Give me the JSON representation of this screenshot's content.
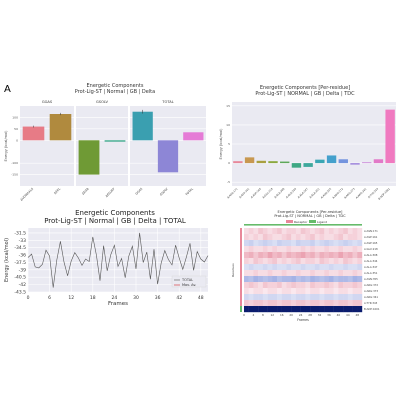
{
  "panel_letter": "A",
  "chart_data": [
    {
      "type": "bar",
      "title": "Energetic Components",
      "subtitle": "Prot-Lig-ST | Normal | GB | Delta",
      "ylabel": "Energy (kcal/mol)",
      "ylim": [
        -200,
        150
      ],
      "yticks": [
        100,
        50,
        0,
        -100,
        -150
      ],
      "grid": true,
      "subplots": [
        {
          "name": "GGAS",
          "categories": [
            "ΔVDWAALS",
            "ΔEEL"
          ],
          "values": [
            60,
            115
          ],
          "errors": [
            4,
            5
          ],
          "colors": [
            "#e77b86",
            "#b08a3e"
          ]
        },
        {
          "name": "GSOLV",
          "categories": [
            "ΔEGB",
            "ΔESURF"
          ],
          "values": [
            -150,
            -6
          ],
          "errors": [
            0,
            0
          ],
          "colors": [
            "#6f9a35",
            "#3aa88a"
          ]
        },
        {
          "name": "TOTAL",
          "categories": [
            "GGAS",
            "GSOLV",
            "TOTAL"
          ],
          "values": [
            125,
            -140,
            35
          ],
          "errors": [
            8,
            0,
            0
          ],
          "colors": [
            "#3a9fb0",
            "#8d86d6",
            "#e57bd6"
          ]
        }
      ]
    },
    {
      "type": "bar",
      "title": "Energetic Components [Per-residue]",
      "subtitle": "Prot-Lig-ST | NORMAL | GB | Delta | TDC",
      "ylabel": "Energy (kcal/mol)",
      "ylim": [
        -6,
        16
      ],
      "yticks": [
        15,
        10,
        5,
        0,
        -5
      ],
      "grid": true,
      "categories": [
        "A:ASN:171",
        "A:ASP:161",
        "A:ASP:165",
        "A:GLU:218",
        "A:ALA:308",
        "A:ALA:344",
        "A:ALA:347",
        "A:ALA:351",
        "A:ASN:355",
        "A:ARG:372",
        "A:ARG:373",
        "A:ARG:341",
        "A:TYR:343",
        "B:ADP:1001"
      ],
      "values": [
        0.5,
        1.5,
        0.6,
        0.5,
        0.4,
        -1.2,
        -1.0,
        0.9,
        2.0,
        1.0,
        -0.4,
        0.2,
        1.0,
        14.0
      ],
      "colors": [
        "#e8889a",
        "#c89850",
        "#a9a040",
        "#8aa83e",
        "#5ea85a",
        "#3ea884",
        "#3ea89c",
        "#3aa6b4",
        "#44a0cc",
        "#7494de",
        "#a088dc",
        "#c880d8",
        "#e27ac8",
        "#f07ac0"
      ]
    },
    {
      "type": "line",
      "title": "Energetic Components",
      "subtitle": "Prot-Lig-ST | Normal | GB | Delta | TOTAL",
      "xlabel": "Frames",
      "ylabel": "Energy (kcal/mol)",
      "xlim": [
        0,
        50
      ],
      "ylim": [
        -43.5,
        -30.5
      ],
      "xticks": [
        0,
        6,
        12,
        18,
        24,
        30,
        36,
        42,
        48
      ],
      "yticks": [
        -31.5,
        -33.0,
        -34.5,
        -36.0,
        -37.5,
        -39.0,
        -40.5,
        -42.0,
        -43.5
      ],
      "grid": true,
      "legend_position": "bottom-right",
      "series": [
        {
          "name": "TOTAL",
          "x": [
            0,
            1,
            2,
            3,
            4,
            5,
            6,
            7,
            8,
            9,
            10,
            11,
            12,
            13,
            14,
            15,
            16,
            17,
            18,
            19,
            20,
            21,
            22,
            23,
            24,
            25,
            26,
            27,
            28,
            29,
            30,
            31,
            32,
            33,
            34,
            35,
            36,
            37,
            38,
            39,
            40,
            41,
            42,
            43,
            44,
            45,
            46,
            47,
            48,
            49,
            50
          ],
          "values": [
            -36.5,
            -35.8,
            -38.4,
            -38.6,
            -37.9,
            -35.0,
            -36.2,
            -42.6,
            -37.0,
            -33.2,
            -37.4,
            -40.2,
            -37.2,
            -35.5,
            -36.6,
            -38.1,
            -36.8,
            -37.3,
            -32.3,
            -36.0,
            -41.2,
            -34.1,
            -39.2,
            -35.9,
            -34.0,
            -38.3,
            -36.7,
            -40.6,
            -36.2,
            -34.2,
            -38.8,
            -31.5,
            -37.5,
            -35.4,
            -40.9,
            -34.8,
            -41.9,
            -37.6,
            -35.1,
            -36.9,
            -38.0,
            -34.0,
            -36.6,
            -38.9,
            -36.4,
            -33.6,
            -39.1,
            -35.3,
            -36.8,
            -37.4,
            -36.1
          ]
        },
        {
          "name": "Mov. Av.",
          "x": [],
          "values": []
        }
      ],
      "colors": {
        "total": "#555555",
        "mov_av": "#d62728"
      }
    },
    {
      "type": "heatmap",
      "title": "Energetic Components [Per-residue]",
      "subtitle": "Prot-Lig-ST | NORMAL | GB | Delta | TDC",
      "xlabel": "Frames",
      "ylabel": "Residues",
      "legend": [
        "Receptor",
        "Ligand"
      ],
      "legend_colors": {
        "Receptor": "#e8889a",
        "Ligand": "#66bb6a"
      },
      "row_labels": [
        "A:ASN:171",
        "A:ASP:161",
        "A:ASP:165",
        "A:GLU:218",
        "A:ALA:308",
        "A:ALA:344",
        "A:ALA:347",
        "A:ALA:351",
        "A:ASN:355",
        "A:ARG:372",
        "A:ARG:373",
        "A:ARG:341",
        "A:TYR:343",
        "B:ADP:1001"
      ],
      "xticks": [
        0,
        4,
        8,
        12,
        16,
        20,
        24,
        28,
        32,
        36,
        40,
        44,
        48
      ],
      "rows": [
        [
          0.1,
          0.2,
          0.1,
          0.3,
          0.2,
          0.1,
          0.2,
          0.3,
          0.1,
          0.2,
          0.2,
          0.1,
          0.3,
          0.2,
          0.1,
          0.2,
          0.3,
          0.1,
          0.2,
          0.1,
          0.2,
          0.3,
          0.1,
          0.2,
          0.1
        ],
        [
          0.2,
          0.1,
          0.2,
          0.1,
          0.3,
          0.2,
          0.1,
          0.1,
          0.2,
          0.3,
          0.1,
          0.2,
          0.1,
          0.2,
          0.3,
          0.1,
          0.2,
          0.1,
          0.1,
          0.2,
          0.3,
          0.1,
          0.2,
          0.2,
          0.1
        ],
        [
          -0.2,
          -0.3,
          -0.1,
          -0.2,
          -0.3,
          -0.2,
          -0.1,
          -0.3,
          -0.2,
          -0.2,
          -0.1,
          -0.3,
          -0.2,
          -0.2,
          -0.3,
          -0.1,
          -0.2,
          -0.3,
          -0.2,
          -0.1,
          -0.2,
          -0.3,
          -0.2,
          -0.1,
          -0.2
        ],
        [
          0.1,
          0.2,
          0.1,
          0.1,
          0.2,
          0.1,
          0.2,
          0.1,
          0.1,
          0.2,
          0.1,
          0.1,
          0.2,
          0.1,
          0.2,
          0.1,
          0.1,
          0.2,
          0.1,
          0.1,
          0.2,
          0.1,
          0.1,
          0.2,
          0.1
        ],
        [
          0.4,
          0.5,
          0.3,
          0.5,
          0.4,
          0.6,
          0.4,
          0.5,
          0.3,
          0.5,
          0.4,
          0.5,
          0.6,
          0.4,
          0.5,
          0.3,
          0.5,
          0.4,
          0.5,
          0.4,
          0.6,
          0.4,
          0.5,
          0.3,
          0.5
        ],
        [
          0.2,
          0.1,
          0.3,
          0.2,
          0.1,
          0.2,
          0.3,
          0.1,
          0.2,
          0.1,
          0.2,
          0.3,
          0.1,
          0.2,
          0.2,
          0.1,
          0.3,
          0.2,
          0.1,
          0.2,
          0.1,
          0.3,
          0.2,
          0.1,
          0.2
        ],
        [
          -0.1,
          -0.2,
          -0.1,
          -0.1,
          -0.2,
          -0.1,
          -0.2,
          -0.1,
          -0.1,
          -0.2,
          -0.1,
          -0.1,
          -0.2,
          -0.1,
          -0.1,
          -0.2,
          -0.1,
          -0.1,
          -0.2,
          -0.1,
          -0.1,
          -0.2,
          -0.1,
          -0.1,
          -0.2
        ],
        [
          0.1,
          0.1,
          0.2,
          0.1,
          0.1,
          0.2,
          0.1,
          0.1,
          0.2,
          0.1,
          0.1,
          0.2,
          0.1,
          0.1,
          0.2,
          0.1,
          0.1,
          0.2,
          0.1,
          0.1,
          0.2,
          0.1,
          0.1,
          0.2,
          0.1
        ],
        [
          -0.6,
          -0.5,
          -0.7,
          -0.6,
          -0.5,
          -0.6,
          -0.7,
          -0.5,
          -0.6,
          -0.6,
          -0.7,
          -0.5,
          -0.6,
          -0.5,
          -0.7,
          -0.6,
          -0.5,
          -0.6,
          -0.7,
          -0.5,
          -0.6,
          -0.6,
          -0.5,
          -0.7,
          -0.6
        ],
        [
          0.2,
          0.3,
          0.2,
          0.1,
          0.3,
          0.2,
          0.2,
          0.3,
          0.1,
          0.2,
          0.3,
          0.2,
          0.2,
          0.1,
          0.3,
          0.2,
          0.2,
          0.3,
          0.2,
          0.1,
          0.3,
          0.2,
          0.2,
          0.3,
          0.2
        ],
        [
          0.1,
          0.0,
          0.1,
          0.1,
          0.0,
          0.1,
          0.1,
          0.0,
          0.1,
          0.1,
          0.0,
          0.1,
          0.1,
          0.0,
          0.1,
          0.1,
          0.0,
          0.1,
          0.1,
          0.0,
          0.1,
          0.1,
          0.0,
          0.1,
          0.1
        ],
        [
          -0.2,
          -0.1,
          -0.2,
          -0.2,
          -0.1,
          -0.2,
          -0.2,
          -0.1,
          -0.2,
          -0.2,
          -0.1,
          -0.2,
          -0.2,
          -0.1,
          -0.2,
          -0.2,
          -0.1,
          -0.2,
          -0.2,
          -0.1,
          -0.2,
          -0.2,
          -0.1,
          -0.2,
          -0.2
        ],
        [
          0.3,
          0.2,
          0.3,
          0.3,
          0.2,
          0.3,
          0.3,
          0.2,
          0.3,
          0.3,
          0.2,
          0.3,
          0.3,
          0.2,
          0.3,
          0.3,
          0.2,
          0.3,
          0.3,
          0.2,
          0.3,
          0.3,
          0.2,
          0.3,
          0.3
        ],
        [
          -1.5,
          -1.5,
          -1.5,
          -1.5,
          -1.5,
          -1.5,
          -1.5,
          -1.5,
          -1.5,
          -1.5,
          -1.5,
          -1.5,
          -1.5,
          -1.5,
          -1.5,
          -1.5,
          -1.5,
          -1.5,
          -1.5,
          -1.5,
          -1.5,
          -1.5,
          -1.5,
          -1.5,
          -1.5
        ]
      ]
    }
  ]
}
